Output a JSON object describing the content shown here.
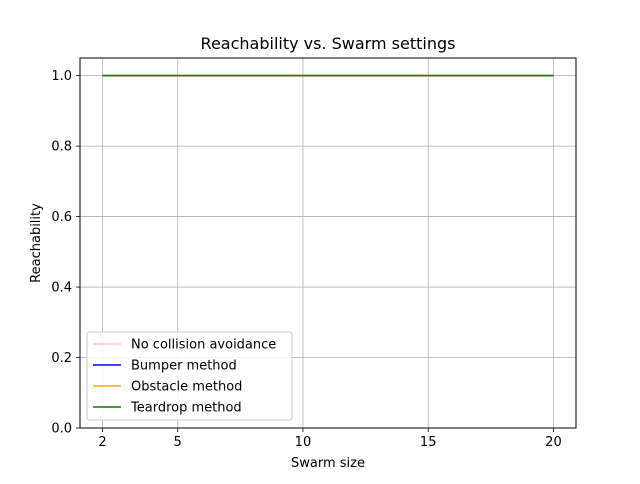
{
  "chart_data": {
    "type": "line",
    "title": "Reachability vs. Swarm settings",
    "xlabel": "Swarm size",
    "ylabel": "Reachability",
    "x": [
      2,
      5,
      10,
      15,
      20
    ],
    "xlim": [
      1.1,
      20.9
    ],
    "ylim": [
      0.0,
      1.05
    ],
    "xticks": [
      2,
      5,
      10,
      15,
      20
    ],
    "xtick_labels": [
      "2",
      "5",
      "10",
      "15",
      "20"
    ],
    "yticks": [
      0.0,
      0.2,
      0.4,
      0.6,
      0.8,
      1.0
    ],
    "ytick_labels": [
      "0.0",
      "0.2",
      "0.4",
      "0.6",
      "0.8",
      "1.0"
    ],
    "grid": true,
    "legend_position": "lower-left",
    "series": [
      {
        "name": "No collision avoidance",
        "color": "#ffc0cb",
        "values": [
          1.0,
          1.0,
          1.0,
          1.0,
          1.0
        ]
      },
      {
        "name": "Bumper method",
        "color": "#0000ff",
        "values": [
          1.0,
          1.0,
          1.0,
          1.0,
          1.0
        ]
      },
      {
        "name": "Obstacle method",
        "color": "#ffa500",
        "values": [
          1.0,
          1.0,
          1.0,
          1.0,
          1.0
        ]
      },
      {
        "name": "Teardrop method",
        "color": "#008000",
        "values": [
          1.0,
          1.0,
          1.0,
          1.0,
          1.0
        ]
      }
    ]
  }
}
